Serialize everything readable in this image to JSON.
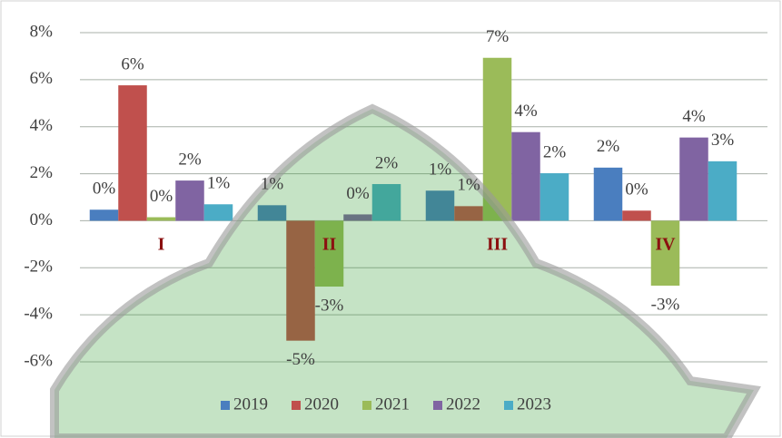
{
  "chart_data": {
    "type": "bar",
    "categories": [
      "I",
      "II",
      "III",
      "IV"
    ],
    "series": [
      {
        "name": "2019",
        "color": "#4a7ebf",
        "values": [
          0.47,
          0.66,
          1.28,
          2.26
        ],
        "value_labels": [
          "0%",
          "1%",
          "1%",
          "2%"
        ]
      },
      {
        "name": "2020",
        "color": "#c0504d",
        "values": [
          5.76,
          -5.1,
          0.62,
          0.43
        ],
        "value_labels": [
          "6%",
          "-5%",
          "1%",
          "0%"
        ]
      },
      {
        "name": "2021",
        "color": "#9bbb59",
        "values": [
          0.15,
          -2.8,
          6.93,
          -2.76
        ],
        "value_labels": [
          "0%",
          "-3%",
          "7%",
          "-3%"
        ]
      },
      {
        "name": "2022",
        "color": "#8064a2",
        "values": [
          1.71,
          0.27,
          3.77,
          3.54
        ],
        "value_labels": [
          "2%",
          "0%",
          "4%",
          "4%"
        ]
      },
      {
        "name": "2023",
        "color": "#4bacc6",
        "values": [
          0.7,
          1.56,
          2.02,
          2.53
        ],
        "value_labels": [
          "1%",
          "2%",
          "2%",
          "3%"
        ]
      }
    ],
    "ylim": [
      -6,
      8
    ],
    "yticks": [
      {
        "value": -6,
        "label": "-6%"
      },
      {
        "value": -4,
        "label": "-4%"
      },
      {
        "value": -2,
        "label": "-2%"
      },
      {
        "value": 0,
        "label": "0%"
      },
      {
        "value": 2,
        "label": "2%"
      },
      {
        "value": 4,
        "label": "4%"
      },
      {
        "value": 6,
        "label": "6%"
      },
      {
        "value": 8,
        "label": "8%"
      }
    ],
    "grid": true,
    "legend": "bottom"
  }
}
